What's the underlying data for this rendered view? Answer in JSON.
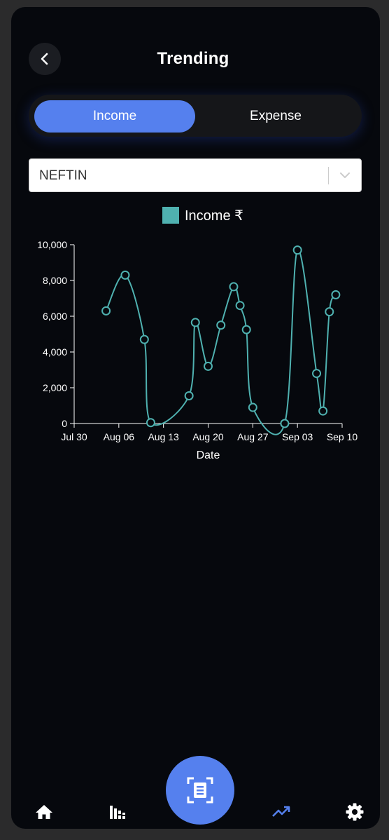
{
  "header": {
    "title": "Trending"
  },
  "toggle": {
    "income_label": "Income",
    "expense_label": "Expense",
    "active": "Income"
  },
  "select": {
    "value": "NEFTIN"
  },
  "colors": {
    "accent": "#5580ee",
    "series": "#4fb1b0",
    "background": "#06080d"
  },
  "chart_data": {
    "type": "line",
    "xlabel": "Date",
    "ylabel": "",
    "ylim": [
      0,
      10000
    ],
    "yticks": [
      0,
      2000,
      4000,
      6000,
      8000,
      10000
    ],
    "ytick_labels": [
      "0",
      "2,000",
      "4,000",
      "6,000",
      "8,000",
      "10,000"
    ],
    "xlim": [
      "2023-07-30",
      "2023-09-10"
    ],
    "xtick_labels": [
      "Jul 30",
      "Aug 06",
      "Aug 13",
      "Aug 20",
      "Aug 27",
      "Sep 03",
      "Sep 10"
    ],
    "legend": "top-center",
    "grid": false,
    "series": [
      {
        "name": "Income ₹",
        "x": [
          "2023-08-04",
          "2023-08-07",
          "2023-08-10",
          "2023-08-11",
          "2023-08-17",
          "2023-08-18",
          "2023-08-20",
          "2023-08-22",
          "2023-08-24",
          "2023-08-25",
          "2023-08-26",
          "2023-08-27",
          "2023-09-01",
          "2023-09-03",
          "2023-09-06",
          "2023-09-07",
          "2023-09-08",
          "2023-09-09"
        ],
        "values": [
          6300,
          8300,
          4700,
          50,
          1550,
          5650,
          3200,
          5500,
          7650,
          6600,
          5250,
          900,
          0,
          9700,
          2800,
          700,
          6250,
          7200
        ]
      }
    ]
  },
  "nav": {
    "items": [
      {
        "icon": "home-icon"
      },
      {
        "icon": "stats-icon"
      },
      {
        "icon": "scan-receipt-icon"
      },
      {
        "icon": "trending-icon",
        "active": true
      },
      {
        "icon": "gear-icon"
      }
    ]
  }
}
